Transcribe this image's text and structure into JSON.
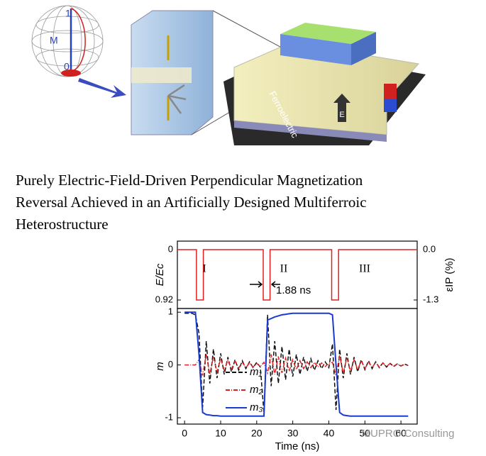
{
  "illustration": {
    "sphere_top": "1",
    "sphere_axis": "M",
    "sphere_bottom": "0",
    "layer": "Ferroelectric",
    "field": "E"
  },
  "title": {
    "lines": [
      "Purely Electric-Field-Driven Perpendicular Magnetization",
      "Reversal Achieved in an Artificially Designed Multiferroic",
      "Heterostructure"
    ]
  },
  "watermark": "MUPRO Consulting",
  "chart_data": [
    {
      "type": "line",
      "ylabel": "E/Ec",
      "y2label": "εIP (%)",
      "annotations": [
        "I",
        "II",
        "III",
        "1.88 ns"
      ],
      "x": [
        -2,
        3.3,
        3.3,
        5.2,
        5.2,
        21.8,
        21.8,
        23.7,
        23.7,
        40.8,
        40.8,
        42.7,
        42.7,
        64.5
      ],
      "series": [
        {
          "color": "#e02020",
          "values": [
            0,
            0,
            0.92,
            0.92,
            0,
            0,
            0.92,
            0.92,
            0,
            0,
            0.92,
            0.92,
            0,
            0
          ]
        }
      ],
      "xlim": [
        -2,
        64.5
      ],
      "ylim": [
        1.075,
        -0.155
      ],
      "yticks": [
        0,
        0.92
      ],
      "y2lim": [
        -1.52,
        0.22
      ],
      "y2ticks": [
        {
          "value": 0,
          "label": "0.0"
        },
        -1.3
      ]
    },
    {
      "type": "line",
      "xlabel": "Time (ns)",
      "ylabel": "m",
      "x": [
        0,
        1,
        2,
        3,
        4,
        5,
        6,
        7,
        8,
        9,
        10,
        11,
        12,
        13,
        14,
        15,
        16,
        17,
        18,
        19,
        20,
        21,
        22,
        23,
        24,
        25,
        26,
        27,
        28,
        29,
        30,
        31,
        32,
        33,
        34,
        35,
        36,
        37,
        38,
        39,
        40,
        41,
        42,
        43,
        44,
        45,
        46,
        47,
        48,
        49,
        50,
        51,
        52,
        53,
        54,
        55,
        56,
        57,
        58,
        59,
        60,
        61,
        62
      ],
      "series": [
        {
          "name": "m₁",
          "color": "#111111",
          "dash": "6,3",
          "values": [
            0.98,
            0.98,
            0.98,
            0.95,
            0.6,
            -0.8,
            0.45,
            -0.35,
            0.3,
            -0.25,
            0.22,
            -0.18,
            0.15,
            -0.13,
            0.1,
            -0.1,
            0.08,
            -0.07,
            0.06,
            -0.05,
            0.05,
            -0.04,
            -0.9,
            0.95,
            -0.4,
            0.45,
            -0.35,
            0.35,
            -0.28,
            0.3,
            -0.22,
            0.2,
            -0.18,
            0.15,
            -0.12,
            0.12,
            -0.1,
            0.08,
            -0.07,
            0.06,
            -0.05,
            0.4,
            -0.85,
            0.3,
            -0.25,
            0.22,
            -0.18,
            0.15,
            -0.13,
            0.1,
            -0.09,
            0.08,
            -0.07,
            0.06,
            -0.05,
            0.04,
            -0.04,
            0.03,
            -0.03,
            0.02,
            -0.02,
            0.02,
            -0.01
          ]
        },
        {
          "name": "m₂",
          "color": "#e02020",
          "dash": "6,2,1,2",
          "values": [
            0,
            0,
            0,
            0,
            0.1,
            -0.2,
            0.2,
            -0.18,
            0.16,
            -0.14,
            0.12,
            -0.1,
            0.09,
            -0.08,
            0.07,
            -0.06,
            0.05,
            -0.05,
            0.04,
            -0.04,
            0.03,
            -0.03,
            0.05,
            -0.15,
            0.2,
            -0.18,
            0.16,
            -0.15,
            0.13,
            -0.12,
            0.1,
            -0.09,
            0.08,
            -0.07,
            0.06,
            -0.05,
            0.05,
            -0.04,
            0.04,
            -0.03,
            0.03,
            0.05,
            -0.2,
            0.18,
            -0.16,
            0.14,
            -0.12,
            0.1,
            -0.09,
            0.08,
            -0.07,
            0.06,
            -0.05,
            0.05,
            -0.04,
            0.04,
            -0.03,
            0.03,
            -0.02,
            0.02,
            -0.02,
            0.01,
            -0.01
          ]
        },
        {
          "name": "m₃",
          "color": "#1a3ad0",
          "dash": "",
          "values": [
            1,
            1,
            1,
            1,
            0.2,
            -0.9,
            -0.94,
            -0.95,
            -0.96,
            -0.96,
            -0.97,
            -0.97,
            -0.97,
            -0.97,
            -0.97,
            -0.97,
            -0.97,
            -0.97,
            -0.97,
            -0.97,
            -0.97,
            -0.97,
            -0.97,
            0.85,
            0.88,
            0.91,
            0.93,
            0.95,
            0.96,
            0.97,
            0.98,
            0.98,
            0.98,
            0.98,
            0.98,
            0.98,
            0.98,
            0.98,
            0.98,
            0.98,
            0.98,
            0.95,
            0,
            -0.9,
            -0.95,
            -0.96,
            -0.97,
            -0.97,
            -0.97,
            -0.97,
            -0.97,
            -0.97,
            -0.97,
            -0.97,
            -0.97,
            -0.97,
            -0.97,
            -0.97,
            -0.97,
            -0.97,
            -0.97,
            -0.97,
            -0.97
          ]
        }
      ],
      "xlim": [
        -2,
        64.5
      ],
      "xticks": [
        0,
        10,
        20,
        30,
        40,
        50,
        60
      ],
      "ylim": [
        -1.12,
        1.07
      ],
      "yticks": [
        -1,
        0,
        1
      ]
    }
  ]
}
